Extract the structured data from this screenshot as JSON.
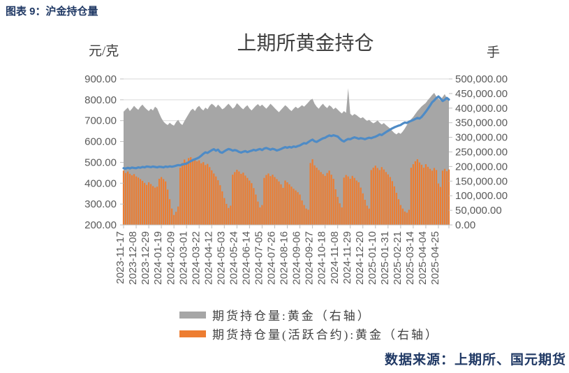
{
  "header": {
    "caption": "图表 9：沪金持仓量"
  },
  "footer": {
    "source": "数据来源：上期所、国元期货"
  },
  "chart_data": {
    "type": "combo",
    "title": "上期所黄金持仓",
    "grid": true,
    "colors": {
      "area": "#A6A6A6",
      "bar": "#ED7D31",
      "line": "#4E8BC6",
      "gridline": "#D9D9D9",
      "axis": "#BFBFBF",
      "tick_label": "#595959"
    },
    "left_axis": {
      "unit": "元/克",
      "min": 200,
      "max": 900,
      "step": 100,
      "tick_labels": [
        "900.00",
        "800.00",
        "700.00",
        "600.00",
        "500.00",
        "400.00",
        "300.00",
        "200.00"
      ]
    },
    "right_axis": {
      "unit": "手",
      "min": 0,
      "max": 500000,
      "step": 50000,
      "tick_labels": [
        "500,000.00",
        "450,000.00",
        "400,000.00",
        "350,000.00",
        "300,000.00",
        "250,000.00",
        "200,000.00",
        "150,000.00",
        "100,000.00",
        "50,000.00",
        "0.00"
      ]
    },
    "x_tick_labels": [
      "2023-11-17",
      "2023-12-08",
      "2023-12-29",
      "2024-01-19",
      "2024-02-09",
      "2024-03-01",
      "2024-03-22",
      "2024-04-12",
      "2024-05-03",
      "2024-05-24",
      "2024-06-14",
      "2024-07-05",
      "2024-07-26",
      "2024-08-16",
      "2024-09-06",
      "2024-09-27",
      "2024-10-18",
      "2024-11-08",
      "2024-11-29",
      "2024-12-20",
      "2025-01-10",
      "2025-01-31",
      "2025-02-21",
      "2025-03-14",
      "2025-04-04",
      "2025-04-25"
    ],
    "points_per_label": 6,
    "legend": [
      {
        "label": "期货持仓量:黄金（右轴）",
        "color": "#A6A6A6"
      },
      {
        "label": "期货持仓量(活跃合约):黄金（右轴）",
        "color": "#ED7D31"
      }
    ],
    "series": [
      {
        "name": "期货持仓量:黄金（右轴）",
        "type": "area",
        "axis": "right",
        "color": "#A6A6A6",
        "values": [
          388000,
          395000,
          402000,
          390000,
          398000,
          408000,
          400000,
          394000,
          405000,
          412000,
          403000,
          396000,
          390000,
          398000,
          392000,
          405000,
          399000,
          382000,
          366000,
          354000,
          347000,
          342000,
          350000,
          344000,
          340000,
          352000,
          360000,
          348000,
          342000,
          356000,
          368000,
          380000,
          392000,
          398000,
          390000,
          402000,
          408000,
          398000,
          392000,
          402000,
          396000,
          408000,
          415000,
          410000,
          402000,
          412000,
          405000,
          396000,
          400000,
          408000,
          415000,
          407000,
          398000,
          404000,
          417000,
          410000,
          402000,
          396000,
          404000,
          410000,
          399000,
          392000,
          400000,
          408000,
          414000,
          406000,
          412000,
          405000,
          398000,
          406000,
          415000,
          408000,
          400000,
          393000,
          386000,
          394000,
          402000,
          410000,
          404000,
          396000,
          390000,
          398000,
          405000,
          399000,
          404000,
          410000,
          405000,
          412000,
          420000,
          428000,
          432000,
          415000,
          405000,
          398000,
          408000,
          415000,
          406000,
          400000,
          410000,
          405000,
          396000,
          402000,
          395000,
          388000,
          382000,
          390000,
          384000,
          468000,
          381000,
          374000,
          380000,
          376000,
          370000,
          365000,
          369000,
          362000,
          356000,
          360000,
          353000,
          348000,
          352000,
          358000,
          350000,
          344000,
          349000,
          342000,
          336000,
          330000,
          322000,
          315000,
          310000,
          316000,
          312000,
          320000,
          330000,
          342000,
          355000,
          362000,
          370000,
          380000,
          390000,
          398000,
          406000,
          412000,
          418000,
          428000,
          436000,
          445000,
          452000,
          440000,
          432000,
          426000,
          438000,
          448000,
          434000,
          430000
        ]
      },
      {
        "name": "期货持仓量(活跃合约):黄金（右轴）",
        "type": "bar",
        "axis": "right",
        "color": "#ED7D31",
        "values": [
          186000,
          178000,
          183000,
          175000,
          170000,
          174000,
          166000,
          162000,
          157000,
          151000,
          144000,
          137000,
          146000,
          140000,
          133000,
          128000,
          131000,
          158000,
          164000,
          157000,
          149000,
          121000,
          88000,
          56000,
          34000,
          45000,
          63000,
          196000,
          212000,
          224000,
          216000,
          229000,
          232000,
          223000,
          228000,
          218000,
          221000,
          211000,
          215000,
          205000,
          209000,
          198000,
          187000,
          176000,
          166000,
          153000,
          136000,
          115000,
          92000,
          72000,
          58000,
          66000,
          172000,
          181000,
          189000,
          183000,
          175000,
          179000,
          169000,
          161000,
          152000,
          143000,
          126000,
          104000,
          80000,
          60000,
          68000,
          161000,
          171000,
          176000,
          167000,
          172000,
          164000,
          157000,
          149000,
          139000,
          127000,
          152000,
          146000,
          139000,
          131000,
          124000,
          118000,
          112000,
          104000,
          84000,
          68000,
          56000,
          52000,
          212000,
          225000,
          204000,
          196000,
          188000,
          181000,
          174000,
          168000,
          178000,
          186000,
          172000,
          158000,
          122000,
          96000,
          74000,
          60000,
          162000,
          171000,
          166000,
          158000,
          168000,
          161000,
          152000,
          146000,
          128000,
          108000,
          86000,
          66000,
          56000,
          188000,
          196000,
          203000,
          195000,
          188000,
          198000,
          190000,
          181000,
          173000,
          164000,
          150000,
          132000,
          110000,
          88000,
          68000,
          56000,
          46000,
          42000,
          52000,
          196000,
          208000,
          218000,
          225000,
          214000,
          206000,
          196000,
          208000,
          199000,
          192000,
          186000,
          195000,
          188000,
          142000,
          130000,
          186000,
          192000,
          184000,
          190000
        ]
      },
      {
        "name": "line-series-left-axis",
        "type": "line",
        "axis": "left",
        "color": "#4E8BC6",
        "values": [
          472,
          470,
          474,
          471,
          475,
          473,
          472,
          476,
          474,
          478,
          476,
          480,
          479,
          477,
          480,
          478,
          476,
          479,
          478,
          476,
          480,
          478,
          481,
          479,
          481,
          484,
          487,
          486,
          490,
          492,
          494,
          500,
          506,
          511,
          515,
          519,
          524,
          532,
          541,
          548,
          545,
          552,
          558,
          563,
          556,
          561,
          549,
          546,
          553,
          559,
          564,
          561,
          556,
          559,
          556,
          550,
          547,
          551,
          554,
          549,
          553,
          556,
          560,
          557,
          561,
          564,
          559,
          566,
          569,
          565,
          561,
          565,
          562,
          557,
          560,
          564,
          569,
          573,
          570,
          574,
          571,
          576,
          574,
          578,
          581,
          587,
          592,
          590,
          597,
          604,
          609,
          601,
          598,
          604,
          610,
          615,
          618,
          624,
          629,
          626,
          630,
          627,
          624,
          614,
          605,
          600,
          607,
          612,
          611,
          616,
          620,
          617,
          613,
          616,
          614,
          611,
          615,
          618,
          616,
          620,
          623,
          628,
          634,
          631,
          638,
          645,
          651,
          657,
          663,
          668,
          672,
          676,
          679,
          686,
          691,
          689,
          695,
          699,
          703,
          708,
          713,
          710,
          718,
          730,
          743,
          757,
          772,
          788,
          797,
          808,
          816,
          806,
          794,
          800,
          809,
          801
        ]
      }
    ]
  }
}
